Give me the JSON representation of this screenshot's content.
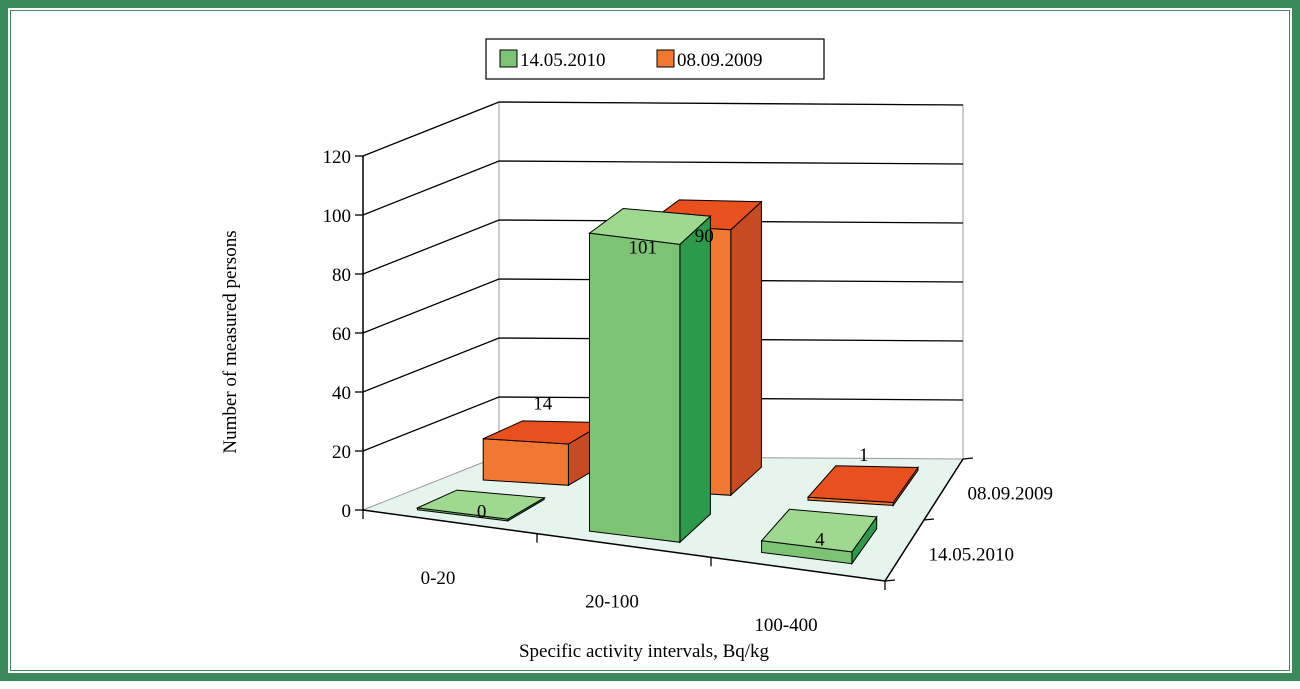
{
  "chart_data": {
    "type": "bar",
    "style": "3d-clustered",
    "categories": [
      "0-20",
      "20-100",
      "100-400"
    ],
    "series": [
      {
        "name": "14.05.2010",
        "values": [
          0,
          101,
          4
        ],
        "color": "#7cc474",
        "dark_color": "#2b9a4a",
        "top_color": "#9fd88f"
      },
      {
        "name": "08.09.2009",
        "values": [
          14,
          90,
          1
        ],
        "color": "#f07830",
        "dark_color": "#c64a22",
        "top_color": "#e8501e"
      }
    ],
    "data_labels": [
      "0",
      "101",
      "4",
      "14",
      "90",
      "1"
    ],
    "xlabel": "Specific activity intervals, Bq/kg",
    "ylabel": "Number of measured persons",
    "depth_labels": [
      "08.09.2009",
      "14.05.2010"
    ],
    "ylim": [
      0,
      120
    ],
    "yticks": [
      "0",
      "20",
      "40",
      "60",
      "80",
      "100",
      "120"
    ],
    "grid": true,
    "legend_position": "top",
    "floor_color": "#e6f4ee"
  }
}
